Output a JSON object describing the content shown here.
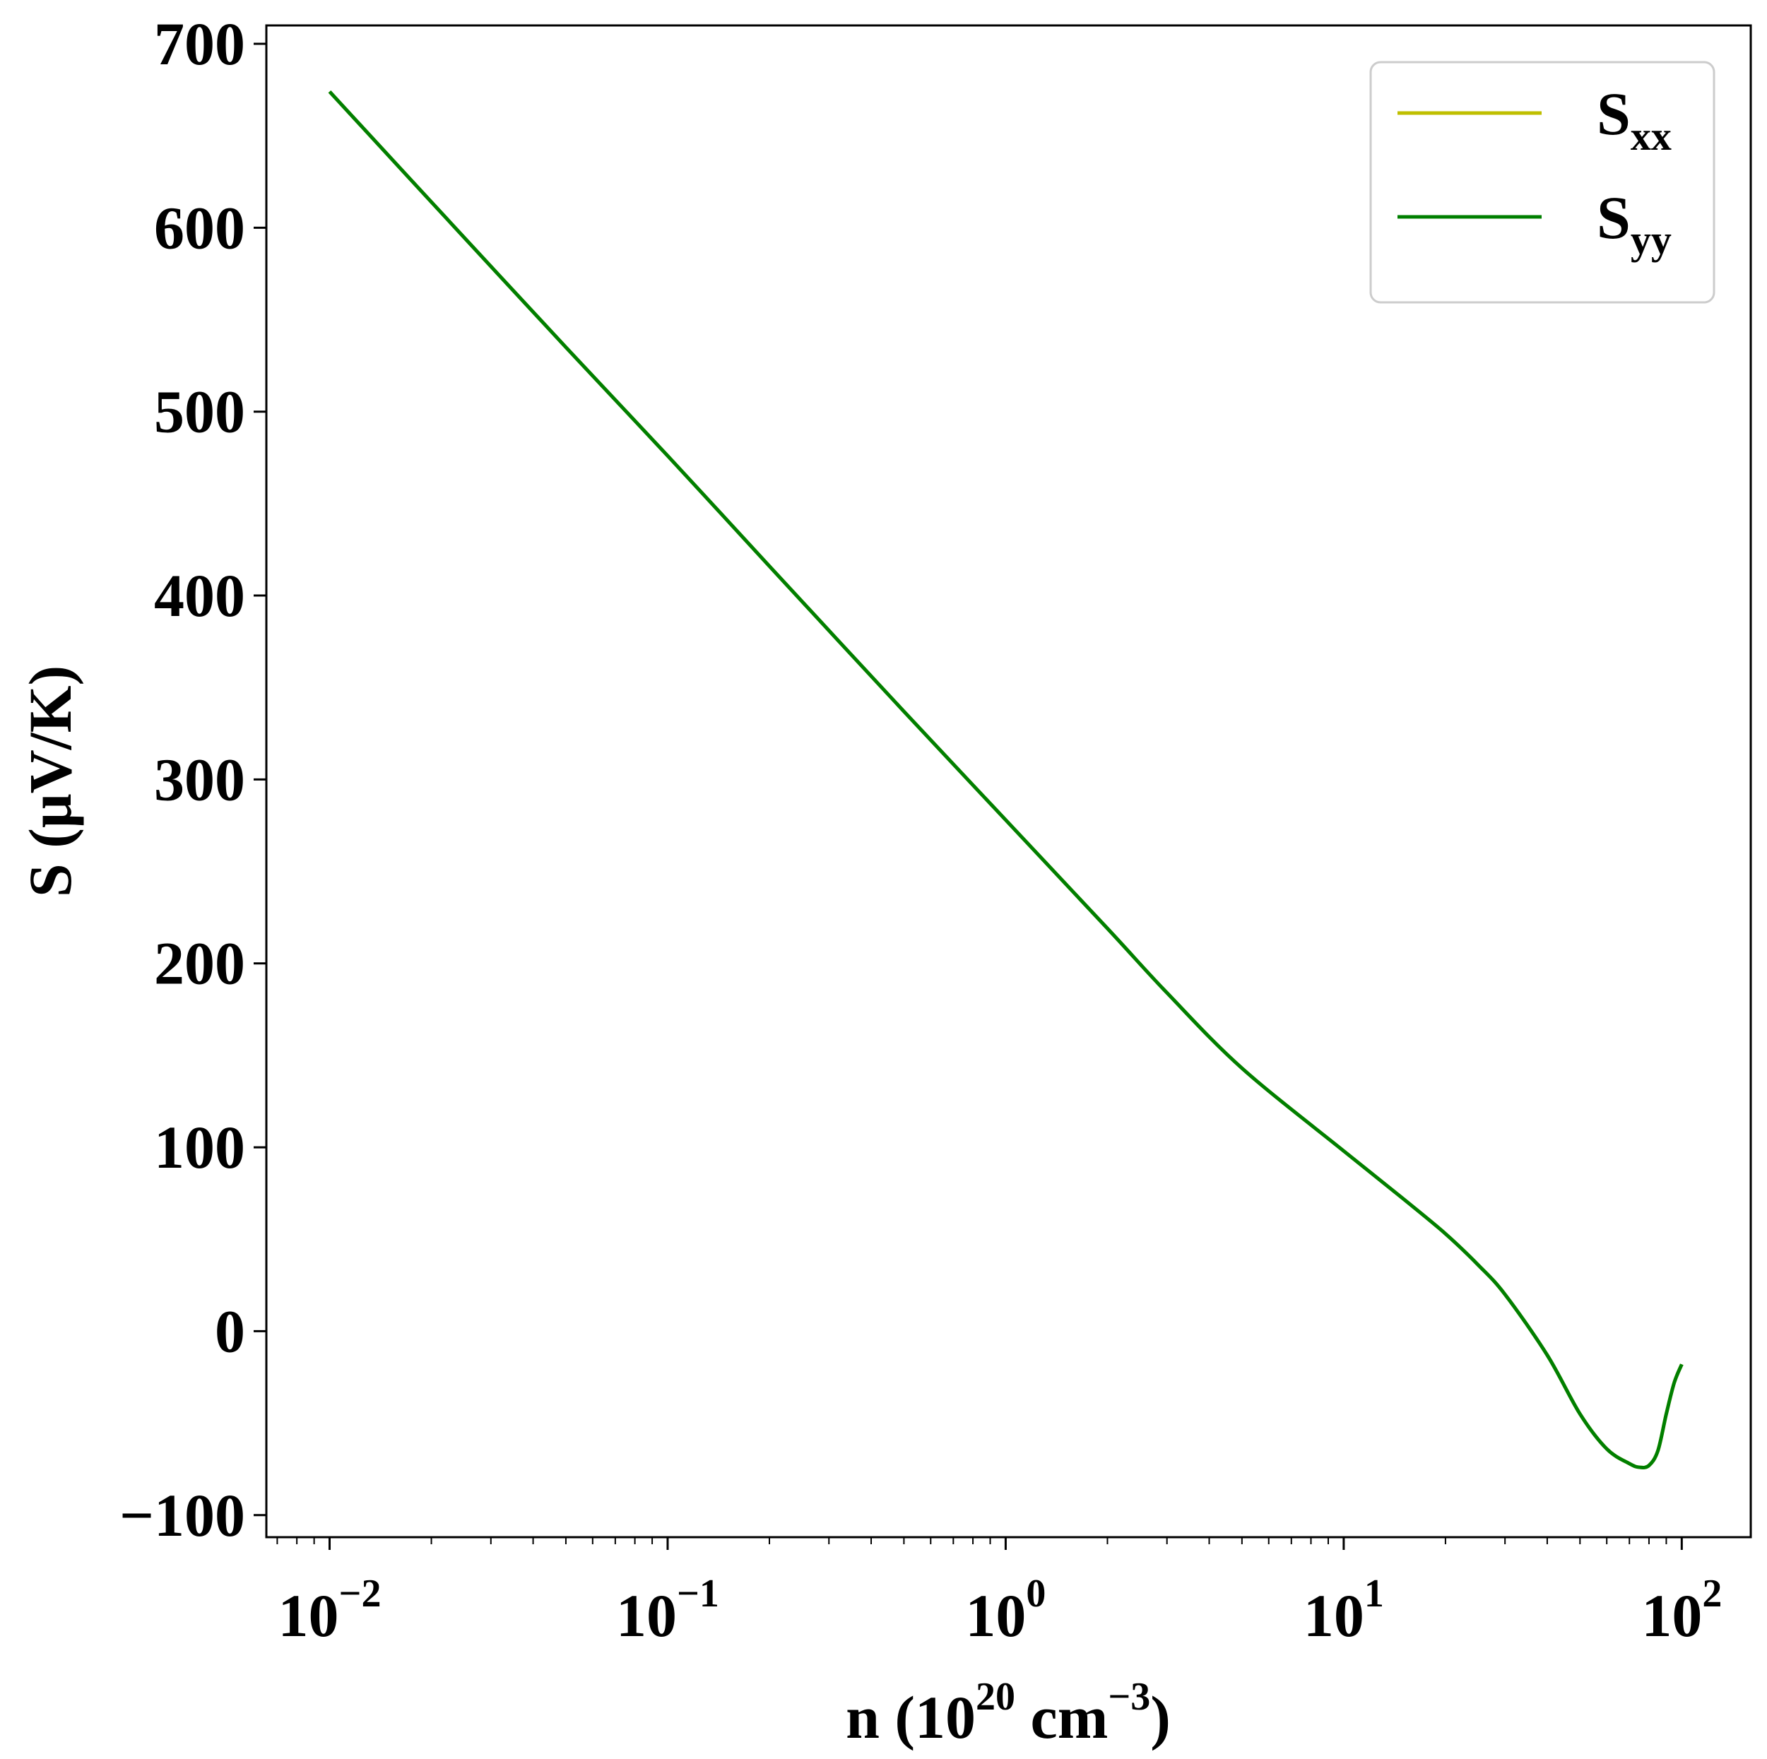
{
  "chart_data": {
    "type": "line",
    "xscale": "log",
    "xlim": [
      0.0065,
      160
    ],
    "ylim": [
      -112,
      710
    ],
    "xlabel": {
      "main": "n (10",
      "sup1": "20",
      "mid": " cm",
      "sup2": "−3",
      "end": ")"
    },
    "ylabel": "S (μV/K)",
    "x_ticks": [
      {
        "value": 0.01,
        "base": "10",
        "exp": "−2"
      },
      {
        "value": 0.1,
        "base": "10",
        "exp": "−1"
      },
      {
        "value": 1,
        "base": "10",
        "exp": "0"
      },
      {
        "value": 10,
        "base": "10",
        "exp": "1"
      },
      {
        "value": 100,
        "base": "10",
        "exp": "2"
      }
    ],
    "y_ticks": [
      {
        "value": 700,
        "label": "700"
      },
      {
        "value": 600,
        "label": "600"
      },
      {
        "value": 500,
        "label": "500"
      },
      {
        "value": 400,
        "label": "400"
      },
      {
        "value": 300,
        "label": "300"
      },
      {
        "value": 200,
        "label": "200"
      },
      {
        "value": 100,
        "label": "100"
      },
      {
        "value": 0,
        "label": "0"
      },
      {
        "value": -100,
        "label": "−100"
      }
    ],
    "legend": {
      "position": "top-right"
    },
    "series": [
      {
        "name": "S",
        "sub": "xx",
        "color": "#bfbf00",
        "x": [
          0.01,
          0.02,
          0.05,
          0.1,
          0.2,
          0.5,
          1,
          2,
          3,
          5,
          10,
          15,
          20,
          25,
          30,
          40,
          50,
          60,
          70,
          75,
          80,
          85,
          90,
          95,
          100
        ],
        "y": [
          674,
          614,
          535,
          476,
          416,
          337,
          278,
          219,
          184,
          143,
          98,
          72,
          53,
          36,
          20,
          -13,
          -45,
          -64,
          -72,
          -74,
          -73,
          -65,
          -45,
          -28,
          -18
        ]
      },
      {
        "name": "S",
        "sub": "yy",
        "color": "#007f00",
        "x": [
          0.01,
          0.02,
          0.05,
          0.1,
          0.2,
          0.5,
          1,
          2,
          3,
          5,
          10,
          15,
          20,
          25,
          30,
          40,
          50,
          60,
          70,
          75,
          80,
          85,
          90,
          95,
          100
        ],
        "y": [
          674,
          614,
          535,
          476,
          416,
          337,
          278,
          219,
          184,
          143,
          98,
          72,
          53,
          36,
          20,
          -13,
          -45,
          -64,
          -72,
          -74,
          -73,
          -65,
          -45,
          -28,
          -18
        ]
      }
    ]
  }
}
